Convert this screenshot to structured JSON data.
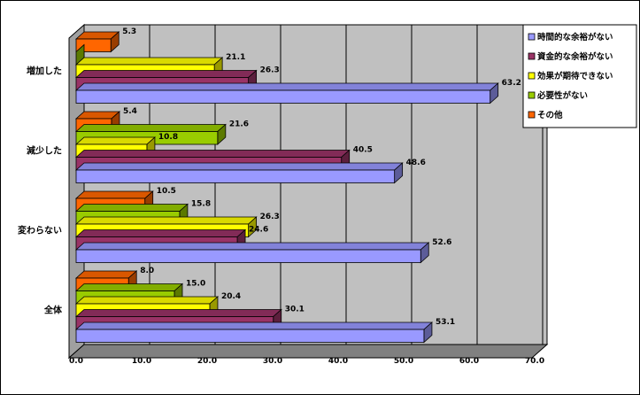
{
  "chart_data": {
    "type": "bar",
    "orientation": "horizontal",
    "three_d": true,
    "categories": [
      "増加した",
      "減少した",
      "変わらない",
      "全体"
    ],
    "series": [
      {
        "name": "時間的な余裕がない",
        "color": "#9999ff",
        "values": [
          63.2,
          48.6,
          52.6,
          53.1
        ]
      },
      {
        "name": "資金的な余裕がない",
        "color": "#993366",
        "values": [
          26.3,
          40.5,
          24.6,
          30.1
        ]
      },
      {
        "name": "効果が期待できない",
        "color": "#ffff00",
        "values": [
          21.1,
          10.8,
          26.3,
          20.4
        ]
      },
      {
        "name": "必要性がない",
        "color": "#99cc00",
        "values": [
          0.0,
          21.6,
          15.8,
          15.0
        ]
      },
      {
        "name": "その他",
        "color": "#ff6600",
        "values": [
          5.3,
          5.4,
          10.5,
          8.0
        ]
      }
    ],
    "data_labels": [
      [
        "63.2",
        "48.6",
        "52.6",
        "53.1"
      ],
      [
        "26.3",
        "40.5",
        "24.6",
        "30.1"
      ],
      [
        "21.1",
        "10.8",
        "26.3",
        "20.4"
      ],
      [
        "",
        "21.6",
        "15.8",
        "15.0"
      ],
      [
        "5.3",
        "5.4",
        "10.5",
        "8.0"
      ]
    ],
    "x_ticks": [
      "0.0",
      "10.0",
      "20.0",
      "30.0",
      "40.0",
      "50.0",
      "60.0",
      "70.0"
    ],
    "xlim": [
      0,
      70
    ],
    "grid": true,
    "legend_position": "right"
  }
}
